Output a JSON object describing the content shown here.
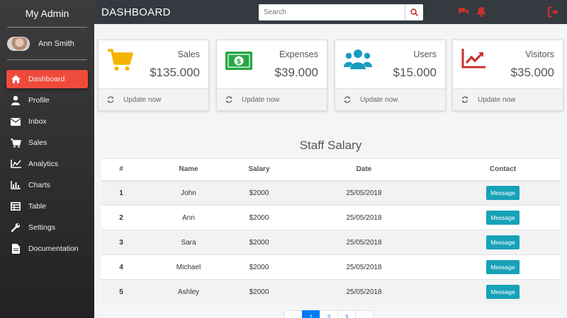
{
  "sidebar": {
    "brand": "My Admin",
    "user_name": "Ann Smith",
    "items": [
      {
        "label": "Dashboard"
      },
      {
        "label": "Profile"
      },
      {
        "label": "Inbox"
      },
      {
        "label": "Sales"
      },
      {
        "label": "Analytics"
      },
      {
        "label": "Charts"
      },
      {
        "label": "Table"
      },
      {
        "label": "Settings"
      },
      {
        "label": "Documentation"
      }
    ]
  },
  "header": {
    "title": "DASHBOARD",
    "search_placeholder": "Search"
  },
  "cards": [
    {
      "label": "Sales",
      "value": "$135.000",
      "footer": "Update now",
      "icon": "cart-icon",
      "color": "#f4b400"
    },
    {
      "label": "Expenses",
      "value": "$39.000",
      "footer": "Update now",
      "icon": "money-icon",
      "color": "#28a745"
    },
    {
      "label": "Users",
      "value": "$15.000",
      "footer": "Update now",
      "icon": "users-icon",
      "color": "#1b9bbf"
    },
    {
      "label": "Visitors",
      "value": "$35.000",
      "footer": "Update now",
      "icon": "chart-line-icon",
      "color": "#c9302c"
    }
  ],
  "table": {
    "title": "Staff Salary",
    "columns": [
      "#",
      "Name",
      "Salary",
      "Date",
      "Contact"
    ],
    "rows": [
      {
        "num": "1",
        "name": "John",
        "salary": "$2000",
        "date": "25/05/2018",
        "action": "Message"
      },
      {
        "num": "2",
        "name": "Ann",
        "salary": "$2000",
        "date": "25/05/2018",
        "action": "Message"
      },
      {
        "num": "3",
        "name": "Sara",
        "salary": "$2000",
        "date": "25/05/2018",
        "action": "Message"
      },
      {
        "num": "4",
        "name": "Michael",
        "salary": "$2000",
        "date": "25/05/2018",
        "action": "Message"
      },
      {
        "num": "5",
        "name": "Ashley",
        "salary": "$2000",
        "date": "25/05/2018",
        "action": "Message"
      }
    ]
  },
  "pagination": {
    "pages": [
      "1",
      "2",
      "3"
    ],
    "active": "1"
  },
  "colors": {
    "accent": "#ef4b3c",
    "header": "#343a40",
    "message_button": "#17a2b8",
    "pager_active": "#007bff"
  }
}
